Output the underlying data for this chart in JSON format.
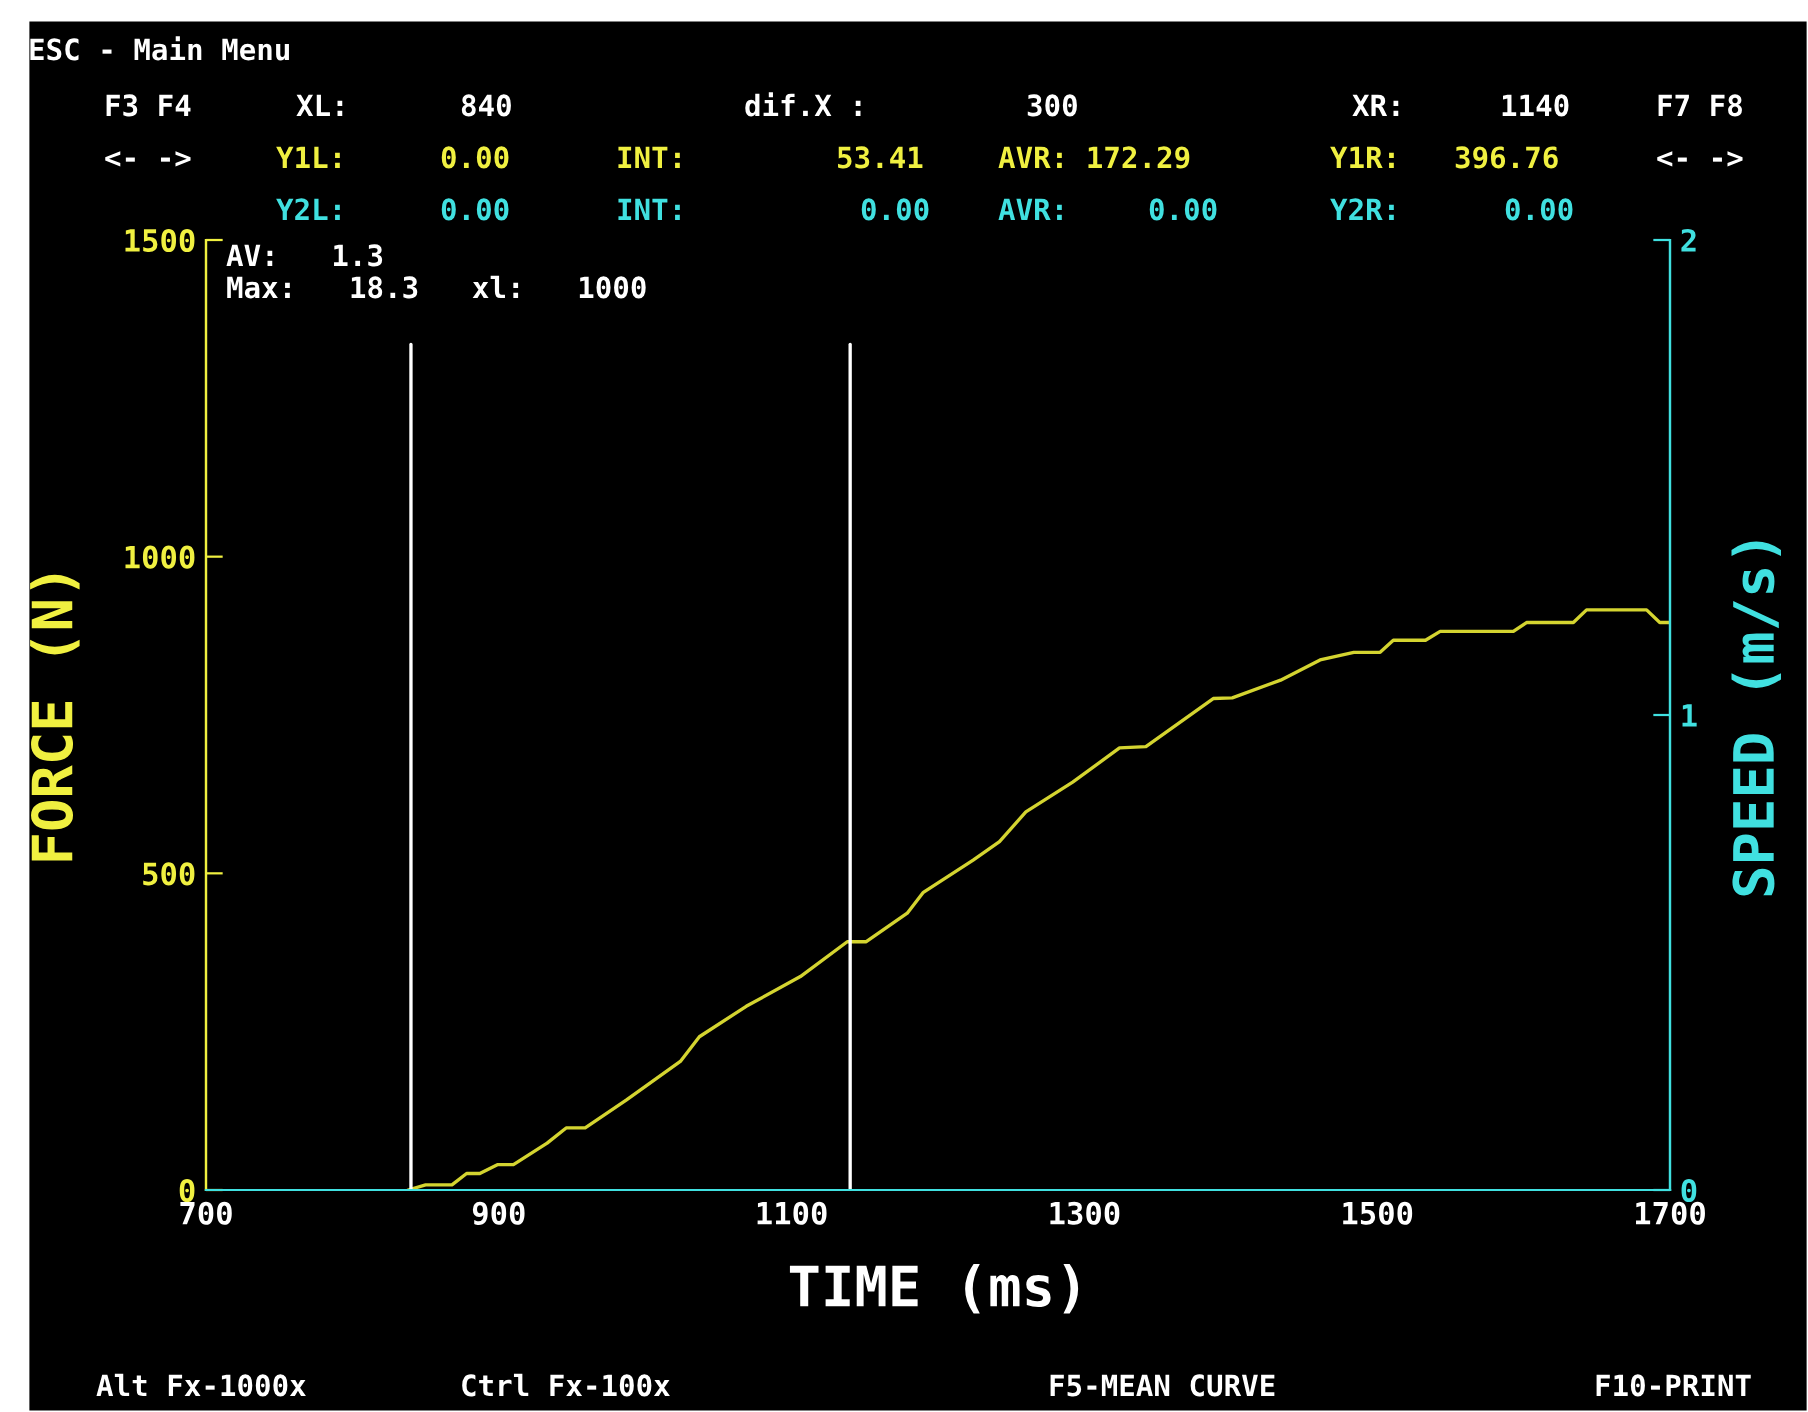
{
  "chart_data": {
    "type": "line",
    "xlabel": "TIME (ms)",
    "ylabel": "FORCE (N)",
    "y2label": "SPEED (m/s)",
    "xlim": [
      700,
      1700
    ],
    "xticks": [
      700,
      900,
      1100,
      1300,
      1500,
      1700
    ],
    "ylim": [
      0,
      1500
    ],
    "yticks": [
      0,
      500,
      1000,
      1500
    ],
    "y2lim": [
      0,
      2
    ],
    "y2ticks": [
      0,
      1,
      2
    ],
    "grid": false,
    "legend": false,
    "marker": "none",
    "line_style": "solid",
    "series": [
      {
        "color": "#d4d430",
        "x": [
          838,
          850,
          868,
          878,
          887,
          899,
          910,
          933,
          946,
          959,
          987,
          1024,
          1037,
          1069,
          1106,
          1138,
          1151,
          1179,
          1190,
          1224,
          1242,
          1260,
          1292,
          1324,
          1342,
          1388,
          1401,
          1434,
          1461,
          1484,
          1502,
          1511,
          1533,
          1543,
          1593,
          1602,
          1634,
          1643,
          1684,
          1693,
          1700
        ],
        "values": [
          0,
          8,
          8,
          26,
          26,
          40,
          40,
          74,
          98,
          98,
          142,
          203,
          242,
          290,
          337,
          392,
          392,
          437,
          470,
          521,
          550,
          597,
          644,
          698,
          700,
          776,
          777,
          805,
          837,
          849,
          849,
          868,
          868,
          882,
          882,
          896,
          896,
          916,
          916,
          896,
          896
        ]
      }
    ],
    "ref_lines": [
      {
        "axis": "x",
        "value": 840,
        "color": "#ffffff"
      },
      {
        "axis": "x",
        "value": 1140,
        "color": "#ffffff"
      }
    ],
    "annotations": [
      "ESC - Main Menu",
      "F3 F4",
      "XL:",
      "840",
      "dif.X :",
      "300",
      "XR:",
      "1140",
      "F7 F8",
      "<- ->",
      "Y1L:",
      "0.00",
      "INT:",
      "53.41",
      "AVR: 172.29",
      "Y1R:",
      "396.76",
      "<- ->",
      "Y2L:",
      "0.00",
      "INT:",
      "0.00",
      "AVR:",
      "0.00",
      "Y2R:",
      "0.00",
      "AV:   1.3",
      "Max:   18.3   xl:   1000",
      "Alt Fx-1000x",
      "Ctrl Fx-100x",
      "F5-MEAN CURVE",
      "F10-PRINT"
    ]
  }
}
